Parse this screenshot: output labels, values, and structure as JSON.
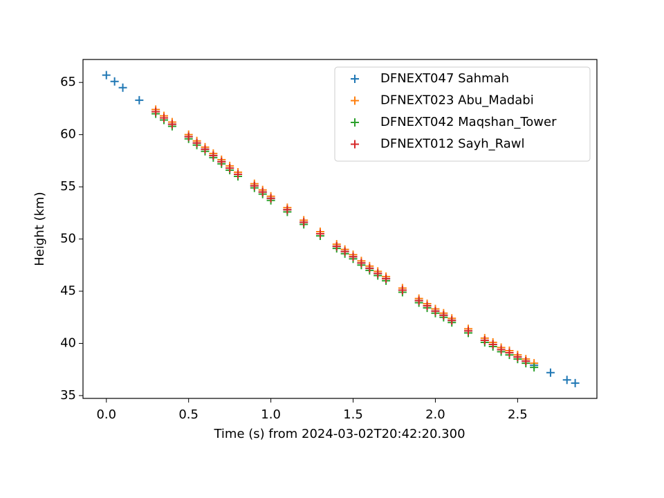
{
  "chart_data": {
    "type": "scatter",
    "xlabel": "Time (s) from 2024-03-02T20:42:20.300",
    "ylabel": "Height (km)",
    "xlim": [
      -0.142,
      2.982
    ],
    "ylim": [
      34.73,
      67.2
    ],
    "xticks": [
      {
        "value": 0,
        "label": "0.0"
      },
      0.5,
      {
        "value": 1,
        "label": "1.0"
      },
      1.5,
      {
        "value": 2,
        "label": "2.0"
      },
      2.5
    ],
    "yticks": [
      35,
      40,
      45,
      50,
      55,
      60,
      65
    ],
    "grid": false,
    "legend": "upper right",
    "series": [
      {
        "name": "DFNEXT047 Sahmah",
        "color": "#1f77b4",
        "x": [
          0,
          0.05,
          0.1,
          0.2,
          0.3,
          0.35,
          0.4,
          0.5,
          0.55,
          0.6,
          0.65,
          0.7,
          0.75,
          0.8,
          0.9,
          0.95,
          1.0,
          1.1,
          1.2,
          1.3,
          1.4,
          1.45,
          1.5,
          1.55,
          1.6,
          1.65,
          1.7,
          1.8,
          1.9,
          1.95,
          2.0,
          2.05,
          2.1,
          2.2,
          2.3,
          2.35,
          2.4,
          2.45,
          2.5,
          2.55,
          2.6,
          2.7,
          2.8,
          2.85
        ],
        "values": [
          65.7,
          65.1,
          64.5,
          63.3,
          62.2,
          61.6,
          61.0,
          59.8,
          59.2,
          58.6,
          58.0,
          57.4,
          56.8,
          56.2,
          55.1,
          54.5,
          53.9,
          52.8,
          51.6,
          50.5,
          49.3,
          48.8,
          48.3,
          47.7,
          47.2,
          46.7,
          46.2,
          45.1,
          44.1,
          43.6,
          43.1,
          42.7,
          42.2,
          41.2,
          40.3,
          39.9,
          39.4,
          39.1,
          38.7,
          38.3,
          37.9,
          37.2,
          36.5,
          36.2
        ]
      },
      {
        "name": "DFNEXT023 Abu_Madabi",
        "color": "#ff7f0e",
        "x": [
          0.3,
          0.35,
          0.4,
          0.5,
          0.55,
          0.6,
          0.65,
          0.7,
          0.75,
          0.8,
          0.9,
          0.95,
          1.0,
          1.1,
          1.2,
          1.3,
          1.4,
          1.45,
          1.5,
          1.55,
          1.6,
          1.65,
          1.7,
          1.8,
          1.9,
          1.95,
          2.0,
          2.05,
          2.1,
          2.2,
          2.3,
          2.35,
          2.4,
          2.45,
          2.5,
          2.55,
          2.6
        ],
        "values": [
          62.4,
          61.8,
          61.2,
          60.0,
          59.4,
          58.8,
          58.2,
          57.6,
          57.0,
          56.4,
          55.3,
          54.7,
          54.1,
          53.0,
          51.8,
          50.7,
          49.5,
          49.0,
          48.5,
          47.9,
          47.4,
          46.9,
          46.4,
          45.3,
          44.3,
          43.8,
          43.3,
          42.9,
          42.4,
          41.4,
          40.5,
          40.1,
          39.6,
          39.3,
          38.9,
          38.5,
          38.1
        ]
      },
      {
        "name": "DFNEXT042 Maqshan_Tower",
        "color": "#2ca02c",
        "x": [
          0.3,
          0.35,
          0.4,
          0.5,
          0.55,
          0.6,
          0.65,
          0.7,
          0.75,
          0.8,
          0.9,
          0.95,
          1.0,
          1.1,
          1.2,
          1.3,
          1.4,
          1.45,
          1.5,
          1.55,
          1.6,
          1.65,
          1.7,
          1.8,
          1.9,
          1.95,
          2.0,
          2.05,
          2.1,
          2.2,
          2.3,
          2.35,
          2.4,
          2.45,
          2.5,
          2.55,
          2.6
        ],
        "values": [
          62.0,
          61.4,
          60.8,
          59.6,
          59.0,
          58.4,
          57.8,
          57.2,
          56.6,
          56.0,
          54.9,
          54.3,
          53.7,
          52.6,
          51.4,
          50.3,
          49.1,
          48.6,
          48.1,
          47.5,
          47.0,
          46.5,
          46.0,
          44.9,
          43.9,
          43.4,
          42.9,
          42.5,
          42.0,
          41.0,
          40.1,
          39.7,
          39.2,
          38.9,
          38.5,
          38.1,
          37.7
        ]
      },
      {
        "name": "DFNEXT012 Sayh_Rawl",
        "color": "#d62728",
        "x": [
          0.3,
          0.35,
          0.4,
          0.5,
          0.55,
          0.6,
          0.65,
          0.7,
          0.75,
          0.8,
          0.9,
          0.95,
          1.0,
          1.1,
          1.2,
          1.3,
          1.4,
          1.45,
          1.5,
          1.55,
          1.6,
          1.65,
          1.7,
          1.8,
          1.9,
          1.95,
          2.0,
          2.05,
          2.1,
          2.2,
          2.3,
          2.35,
          2.4,
          2.45,
          2.5,
          2.55
        ],
        "values": [
          62.2,
          61.6,
          61.0,
          59.8,
          59.2,
          58.6,
          58.0,
          57.4,
          56.8,
          56.2,
          55.1,
          54.5,
          53.9,
          52.8,
          51.6,
          50.5,
          49.3,
          48.8,
          48.3,
          47.7,
          47.2,
          46.7,
          46.2,
          45.1,
          44.1,
          43.6,
          43.1,
          42.7,
          42.2,
          41.2,
          40.3,
          39.9,
          39.4,
          39.1,
          38.7,
          38.3
        ]
      }
    ]
  }
}
